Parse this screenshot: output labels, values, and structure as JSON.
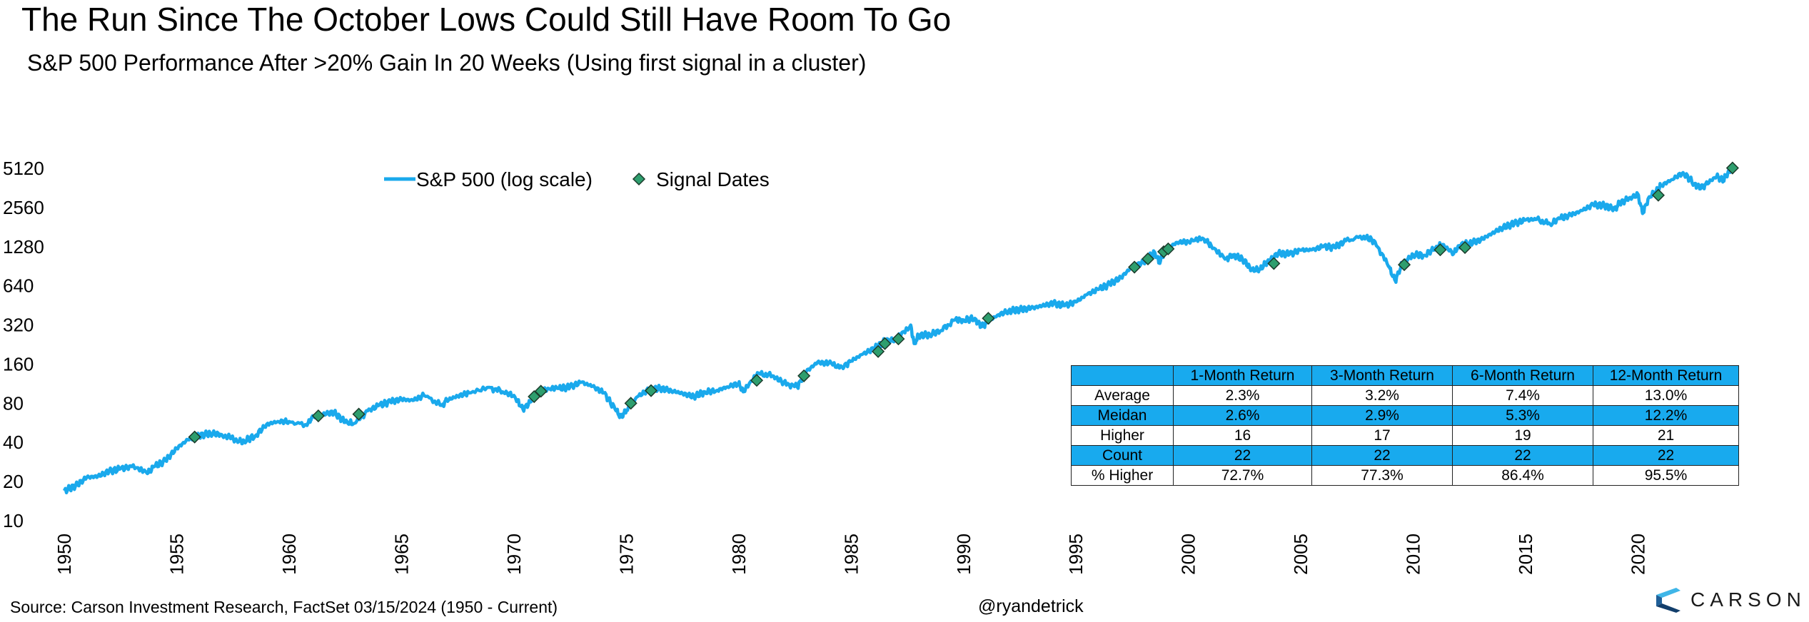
{
  "title": "The Run Since The October Lows Could Still Have Room To Go",
  "subtitle": "S&P 500 Performance After >20% Gain In 20 Weeks (Using first signal in a cluster)",
  "footer": {
    "source": "Source: Carson Investment Research, FactSet 03/15/2024 (1950 - Current)",
    "handle": "@ryandetrick",
    "brand": "CARSON"
  },
  "colors": {
    "line": "#1aa9ec",
    "marker": "#2e9e6e",
    "marker_edge": "#1b3b2b",
    "table_highlight": "#18aaee"
  },
  "chart_data": {
    "type": "line",
    "title": "",
    "xlabel": "",
    "ylabel": "",
    "y_scale": "log2",
    "ylim": [
      10,
      5120
    ],
    "xlim": [
      1950,
      2024.3
    ],
    "x_ticks": [
      "1950",
      "1955",
      "1960",
      "1965",
      "1970",
      "1975",
      "1980",
      "1985",
      "1990",
      "1995",
      "2000",
      "2005",
      "2010",
      "2015",
      "2020"
    ],
    "y_ticks": [
      "10",
      "20",
      "40",
      "80",
      "160",
      "320",
      "640",
      "1280",
      "2560",
      "5120"
    ],
    "legend": {
      "position": "top-left",
      "entries": [
        "S&P 500 (log scale)",
        "Signal Dates"
      ]
    },
    "grid": false,
    "series": [
      {
        "name": "S&P 500 (log scale)",
        "x": [
          1950.0,
          1950.5,
          1951.0,
          1951.5,
          1952.0,
          1952.5,
          1953.0,
          1953.7,
          1954.0,
          1954.5,
          1955.0,
          1955.5,
          1956.0,
          1956.5,
          1957.0,
          1957.8,
          1958.0,
          1958.5,
          1959.0,
          1959.5,
          1960.0,
          1960.8,
          1961.0,
          1961.5,
          1962.0,
          1962.5,
          1962.9,
          1963.5,
          1964.0,
          1964.5,
          1965.0,
          1965.5,
          1966.0,
          1966.8,
          1967.0,
          1967.5,
          1968.0,
          1968.9,
          1969.5,
          1970.0,
          1970.4,
          1970.8,
          1971.3,
          1972.0,
          1972.5,
          1973.0,
          1973.5,
          1974.0,
          1974.5,
          1974.75,
          1975.0,
          1975.5,
          1976.0,
          1976.5,
          1977.0,
          1977.5,
          1978.0,
          1978.5,
          1979.0,
          1979.5,
          1980.0,
          1980.2,
          1980.9,
          1981.5,
          1982.0,
          1982.6,
          1983.0,
          1983.5,
          1984.0,
          1984.6,
          1985.0,
          1985.5,
          1986.0,
          1986.5,
          1987.0,
          1987.65,
          1987.8,
          1988.0,
          1988.5,
          1989.0,
          1989.6,
          1990.0,
          1990.5,
          1990.8,
          1991.0,
          1991.5,
          1992.0,
          1992.5,
          1993.0,
          1993.5,
          1994.0,
          1994.5,
          1995.0,
          1995.5,
          1996.0,
          1996.5,
          1997.0,
          1997.5,
          1998.0,
          1998.5,
          1998.7,
          1999.0,
          1999.5,
          2000.0,
          2000.7,
          2001.0,
          2001.7,
          2002.0,
          2002.5,
          2002.8,
          2003.2,
          2003.5,
          2004.0,
          2004.5,
          2005.0,
          2005.5,
          2006.0,
          2006.5,
          2007.0,
          2007.8,
          2008.3,
          2008.9,
          2009.2,
          2009.5,
          2010.0,
          2010.5,
          2011.0,
          2011.3,
          2011.8,
          2012.0,
          2012.5,
          2013.0,
          2013.5,
          2014.0,
          2014.5,
          2015.0,
          2015.5,
          2016.1,
          2016.5,
          2017.0,
          2017.5,
          2018.0,
          2018.5,
          2018.97,
          2019.2,
          2019.5,
          2020.0,
          2020.2,
          2020.5,
          2020.8,
          2021.0,
          2021.5,
          2022.0,
          2022.5,
          2022.8,
          2023.0,
          2023.5,
          2023.8,
          2024.0,
          2024.2
        ],
        "values": [
          17,
          18.5,
          21.5,
          22,
          24,
          25,
          26,
          23,
          26,
          29,
          36,
          42,
          45,
          47,
          46,
          41,
          41,
          45,
          55,
          58,
          58,
          54,
          62,
          66,
          68,
          57,
          56,
          70,
          77,
          82,
          86,
          84,
          92,
          77,
          84,
          91,
          96,
          106,
          98,
          92,
          72,
          84,
          99,
          104,
          107,
          116,
          108,
          96,
          72,
          63,
          70,
          90,
          102,
          104,
          100,
          95,
          90,
          98,
          100,
          107,
          114,
          98,
          136,
          130,
          115,
          107,
          140,
          165,
          162,
          152,
          169,
          190,
          210,
          240,
          246,
          320,
          230,
          265,
          270,
          290,
          350,
          350,
          360,
          310,
          330,
          380,
          410,
          420,
          430,
          450,
          470,
          450,
          480,
          550,
          600,
          660,
          740,
          900,
          970,
          1160,
          960,
          1230,
          1380,
          1400,
          1460,
          1320,
          1040,
          1110,
          1000,
          840,
          860,
          980,
          1140,
          1120,
          1200,
          1210,
          1280,
          1260,
          1420,
          1540,
          1400,
          900,
          700,
          940,
          1110,
          1100,
          1260,
          1330,
          1130,
          1300,
          1360,
          1440,
          1620,
          1800,
          1930,
          2050,
          2080,
          1900,
          2100,
          2240,
          2420,
          2690,
          2650,
          2480,
          2800,
          2930,
          3230,
          2300,
          3100,
          3400,
          3740,
          4200,
          4750,
          3900,
          3600,
          3850,
          4450,
          4150,
          4800,
          5150
        ]
      },
      {
        "name": "Signal Dates",
        "x": [
          1955.8,
          1961.3,
          1963.1,
          1970.9,
          1971.2,
          1975.2,
          1976.1,
          1980.8,
          1982.9,
          1986.2,
          1986.5,
          1987.1,
          1991.1,
          1997.6,
          1998.2,
          1998.9,
          1999.1,
          2003.8,
          2009.6,
          2011.2,
          2012.3,
          2020.9,
          2024.2
        ],
        "values": [
          44,
          64,
          66,
          90,
          99,
          80,
          100,
          120,
          130,
          200,
          230,
          250,
          360,
          890,
          1030,
          1170,
          1230,
          950,
          930,
          1210,
          1260,
          3180,
          5150
        ]
      }
    ]
  },
  "table": {
    "headers": [
      "",
      "1-Month Return",
      "3-Month Return",
      "6-Month Return",
      "12-Month Return"
    ],
    "rows": [
      {
        "cells": [
          "Average",
          "2.3%",
          "3.2%",
          "7.4%",
          "13.0%"
        ],
        "shaded": false
      },
      {
        "cells": [
          "Meidan",
          "2.6%",
          "2.9%",
          "5.3%",
          "12.2%"
        ],
        "shaded": true
      },
      {
        "cells": [
          "Higher",
          "16",
          "17",
          "19",
          "21"
        ],
        "shaded": false
      },
      {
        "cells": [
          "Count",
          "22",
          "22",
          "22",
          "22"
        ],
        "shaded": true
      },
      {
        "cells": [
          "% Higher",
          "72.7%",
          "77.3%",
          "86.4%",
          "95.5%"
        ],
        "shaded": false
      }
    ]
  }
}
